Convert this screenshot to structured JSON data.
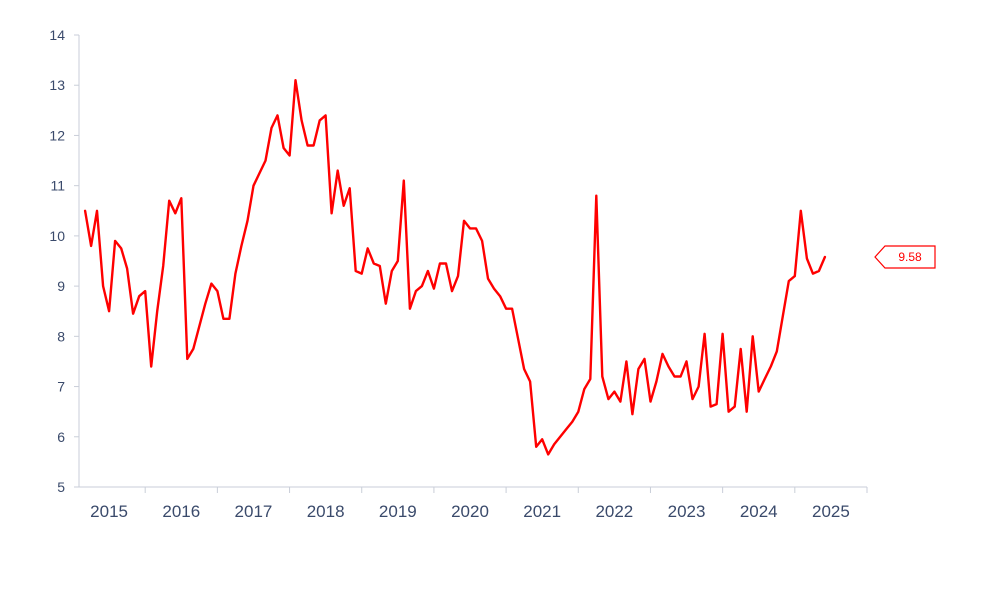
{
  "chart_data": {
    "type": "line",
    "title": "",
    "xlabel": "",
    "ylabel": "",
    "xlim": [
      2014.583,
      2025.5
    ],
    "ylim": [
      5,
      14
    ],
    "grid": false,
    "legend": "none",
    "yticks": [
      5,
      6,
      7,
      8,
      9,
      10,
      11,
      12,
      13,
      14
    ],
    "xticks": [
      2015,
      2016,
      2017,
      2018,
      2019,
      2020,
      2021,
      2022,
      2023,
      2024,
      2025
    ],
    "xtick_labels": [
      "2015",
      "2016",
      "2017",
      "2018",
      "2019",
      "2020",
      "2021",
      "2022",
      "2023",
      "2024",
      "2025"
    ],
    "series": [
      {
        "color": "#ff0000",
        "last_value_label": "9.58",
        "points": [
          [
            2014.667,
            10.5
          ],
          [
            2014.75,
            9.8
          ],
          [
            2014.833,
            10.5
          ],
          [
            2014.917,
            9.0
          ],
          [
            2015.0,
            8.5
          ],
          [
            2015.083,
            9.9
          ],
          [
            2015.167,
            9.75
          ],
          [
            2015.25,
            9.35
          ],
          [
            2015.333,
            8.45
          ],
          [
            2015.417,
            8.8
          ],
          [
            2015.5,
            8.9
          ],
          [
            2015.583,
            7.4
          ],
          [
            2015.667,
            8.5
          ],
          [
            2015.75,
            9.4
          ],
          [
            2015.833,
            10.7
          ],
          [
            2015.917,
            10.45
          ],
          [
            2016.0,
            10.75
          ],
          [
            2016.083,
            7.55
          ],
          [
            2016.167,
            7.75
          ],
          [
            2016.25,
            8.2
          ],
          [
            2016.333,
            8.65
          ],
          [
            2016.417,
            9.05
          ],
          [
            2016.5,
            8.9
          ],
          [
            2016.583,
            8.35
          ],
          [
            2016.667,
            8.35
          ],
          [
            2016.75,
            9.25
          ],
          [
            2016.833,
            9.8
          ],
          [
            2016.917,
            10.3
          ],
          [
            2017.0,
            11.0
          ],
          [
            2017.083,
            11.25
          ],
          [
            2017.167,
            11.5
          ],
          [
            2017.25,
            12.15
          ],
          [
            2017.333,
            12.4
          ],
          [
            2017.417,
            11.75
          ],
          [
            2017.5,
            11.6
          ],
          [
            2017.583,
            13.1
          ],
          [
            2017.667,
            12.3
          ],
          [
            2017.75,
            11.8
          ],
          [
            2017.833,
            11.8
          ],
          [
            2017.917,
            12.3
          ],
          [
            2018.0,
            12.4
          ],
          [
            2018.083,
            10.45
          ],
          [
            2018.167,
            11.3
          ],
          [
            2018.25,
            10.6
          ],
          [
            2018.333,
            10.95
          ],
          [
            2018.417,
            9.3
          ],
          [
            2018.5,
            9.25
          ],
          [
            2018.583,
            9.75
          ],
          [
            2018.667,
            9.45
          ],
          [
            2018.75,
            9.4
          ],
          [
            2018.833,
            8.65
          ],
          [
            2018.917,
            9.3
          ],
          [
            2019.0,
            9.5
          ],
          [
            2019.083,
            11.1
          ],
          [
            2019.167,
            8.55
          ],
          [
            2019.25,
            8.9
          ],
          [
            2019.333,
            9.0
          ],
          [
            2019.417,
            9.3
          ],
          [
            2019.5,
            8.95
          ],
          [
            2019.583,
            9.45
          ],
          [
            2019.667,
            9.45
          ],
          [
            2019.75,
            8.9
          ],
          [
            2019.833,
            9.2
          ],
          [
            2019.917,
            10.3
          ],
          [
            2020.0,
            10.15
          ],
          [
            2020.083,
            10.15
          ],
          [
            2020.167,
            9.9
          ],
          [
            2020.25,
            9.15
          ],
          [
            2020.333,
            8.95
          ],
          [
            2020.417,
            8.8
          ],
          [
            2020.5,
            8.55
          ],
          [
            2020.583,
            8.55
          ],
          [
            2020.667,
            7.95
          ],
          [
            2020.75,
            7.35
          ],
          [
            2020.833,
            7.1
          ],
          [
            2020.917,
            5.8
          ],
          [
            2021.0,
            5.95
          ],
          [
            2021.083,
            5.65
          ],
          [
            2021.167,
            5.85
          ],
          [
            2021.25,
            6.0
          ],
          [
            2021.333,
            6.15
          ],
          [
            2021.417,
            6.3
          ],
          [
            2021.5,
            6.5
          ],
          [
            2021.583,
            6.95
          ],
          [
            2021.667,
            7.15
          ],
          [
            2021.75,
            10.8
          ],
          [
            2021.833,
            7.2
          ],
          [
            2021.917,
            6.75
          ],
          [
            2022.0,
            6.9
          ],
          [
            2022.083,
            6.7
          ],
          [
            2022.167,
            7.5
          ],
          [
            2022.25,
            6.45
          ],
          [
            2022.333,
            7.35
          ],
          [
            2022.417,
            7.55
          ],
          [
            2022.5,
            6.7
          ],
          [
            2022.583,
            7.1
          ],
          [
            2022.667,
            7.65
          ],
          [
            2022.75,
            7.4
          ],
          [
            2022.833,
            7.2
          ],
          [
            2022.917,
            7.2
          ],
          [
            2023.0,
            7.5
          ],
          [
            2023.083,
            6.75
          ],
          [
            2023.167,
            7.0
          ],
          [
            2023.25,
            8.05
          ],
          [
            2023.333,
            6.6
          ],
          [
            2023.417,
            6.65
          ],
          [
            2023.5,
            8.05
          ],
          [
            2023.583,
            6.5
          ],
          [
            2023.667,
            6.6
          ],
          [
            2023.75,
            7.75
          ],
          [
            2023.833,
            6.5
          ],
          [
            2023.917,
            8.0
          ],
          [
            2024.0,
            6.9
          ],
          [
            2024.083,
            7.15
          ],
          [
            2024.167,
            7.4
          ],
          [
            2024.25,
            7.7
          ],
          [
            2024.333,
            8.4
          ],
          [
            2024.417,
            9.1
          ],
          [
            2024.5,
            9.2
          ],
          [
            2024.583,
            10.5
          ],
          [
            2024.667,
            9.55
          ],
          [
            2024.75,
            9.25
          ],
          [
            2024.833,
            9.3
          ],
          [
            2024.917,
            9.58
          ]
        ]
      }
    ]
  }
}
